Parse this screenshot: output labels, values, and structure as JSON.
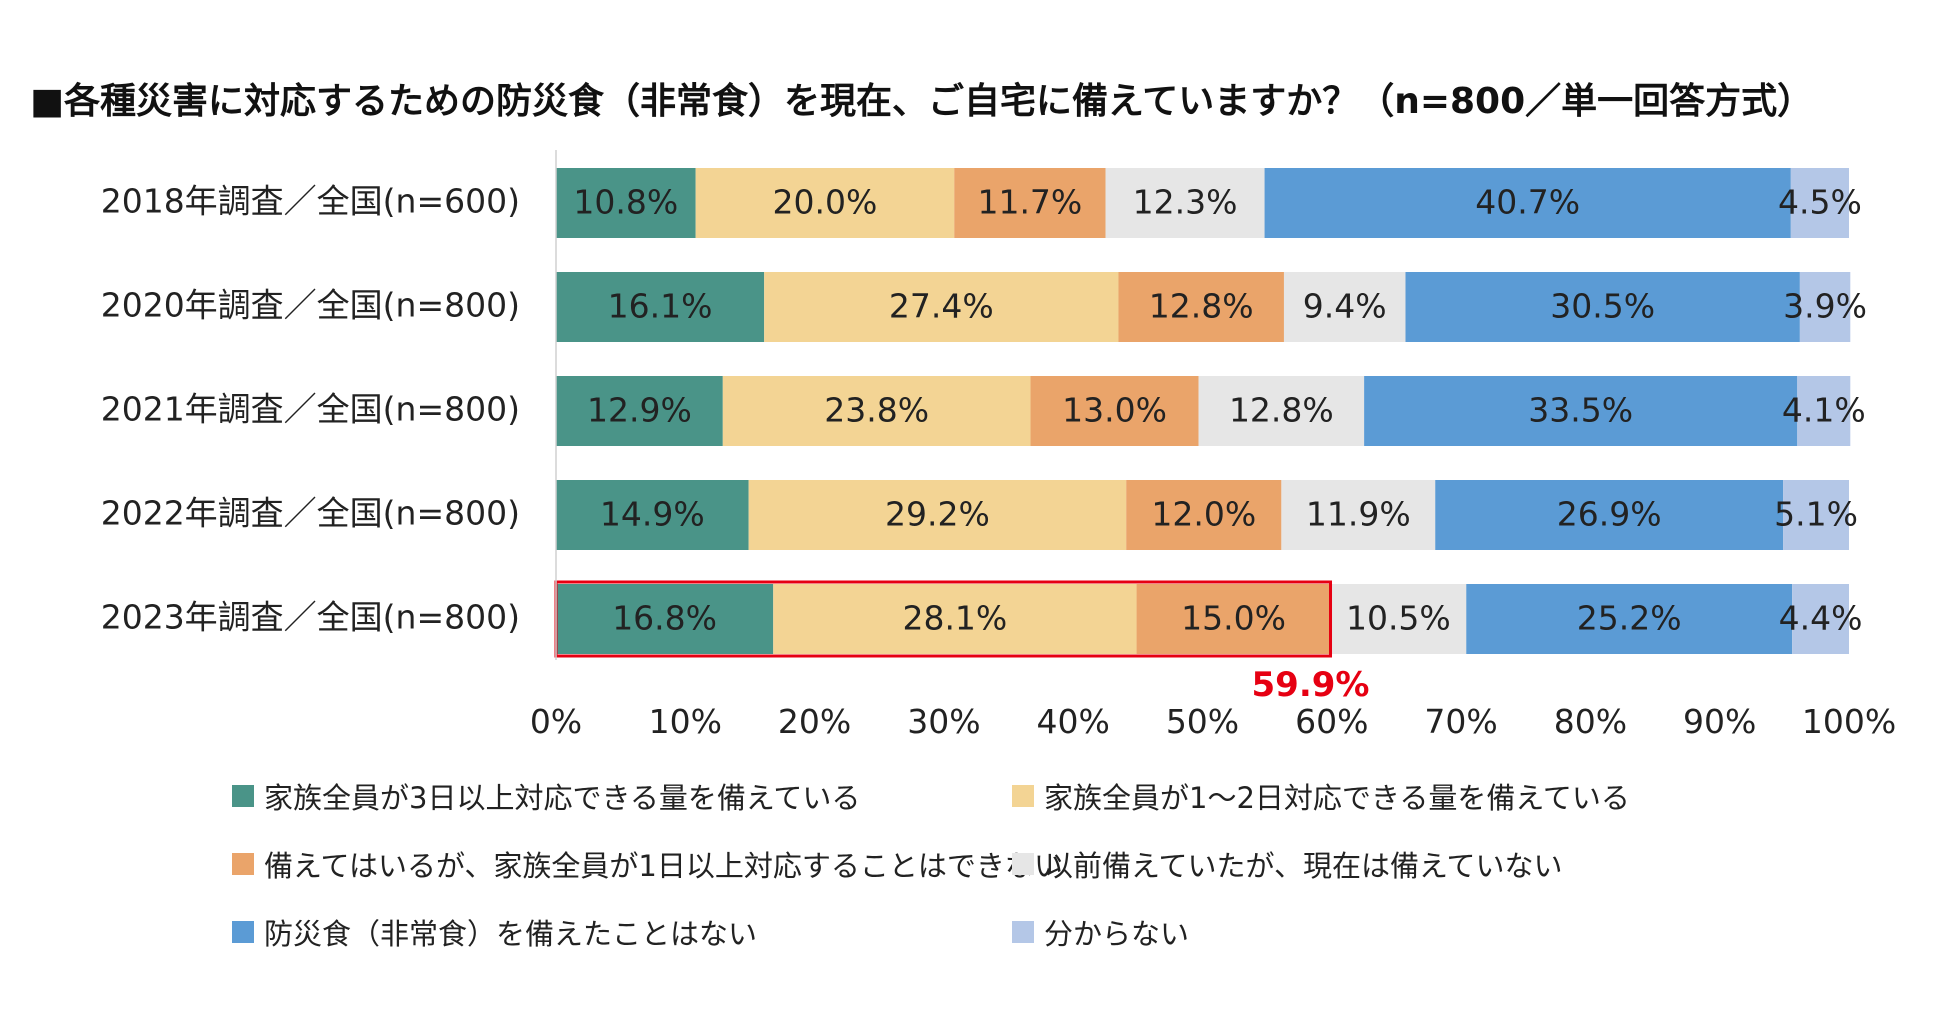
{
  "title": "■各種災害に対応するための防災食（非常食）を現在、ご自宅に備えていますか？（n=800／単一回答方式）",
  "chart_data": {
    "type": "bar",
    "orientation": "horizontal",
    "stacked": true,
    "percent_stacked": true,
    "categories": [
      "2018年調査／全国(n=600)",
      "2020年調査／全国(n=800)",
      "2021年調査／全国(n=800)",
      "2022年調査／全国(n=800)",
      "2023年調査／全国(n=800)"
    ],
    "series": [
      {
        "name": "家族全員が3日以上対応できる量を備えている",
        "color": "#4a9488",
        "values": [
          10.8,
          16.1,
          12.9,
          14.9,
          16.8
        ]
      },
      {
        "name": "家族全員が1～2日対応できる量を備えている",
        "color": "#f3d494",
        "values": [
          20.0,
          27.4,
          23.8,
          29.2,
          28.1
        ]
      },
      {
        "name": "備えてはいるが、家族全員が1日以上対応することはできない",
        "color": "#eaa46a",
        "values": [
          11.7,
          12.8,
          13.0,
          12.0,
          15.0
        ]
      },
      {
        "name": "以前備えていたが、現在は備えていない",
        "color": "#e6e6e6",
        "values": [
          12.3,
          9.4,
          12.8,
          11.9,
          10.5
        ]
      },
      {
        "name": "防災食（非常食）を備えたことはない",
        "color": "#5b9bd5",
        "values": [
          40.7,
          30.5,
          33.5,
          26.9,
          25.2
        ]
      },
      {
        "name": "分からない",
        "color": "#b4c7e7",
        "values": [
          4.5,
          3.9,
          4.1,
          5.1,
          4.4
        ]
      }
    ],
    "xlim": [
      0,
      100
    ],
    "xticks": [
      "0%",
      "10%",
      "20%",
      "30%",
      "40%",
      "50%",
      "60%",
      "70%",
      "80%",
      "90%",
      "100%"
    ],
    "grid": false,
    "legend_position": "bottom",
    "annotation": {
      "text": "59.9%",
      "color": "#e60012",
      "category_index": 4,
      "covers_series": [
        0,
        1,
        2
      ]
    }
  }
}
